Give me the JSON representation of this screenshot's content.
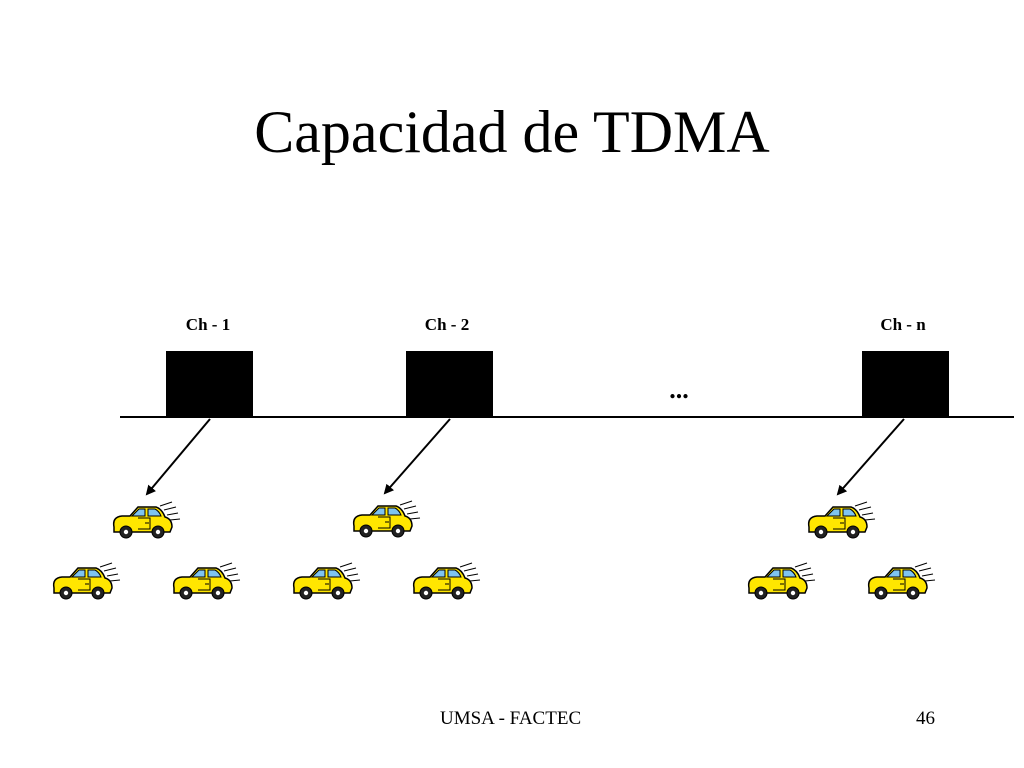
{
  "slide": {
    "title": "Capacidad de TDMA",
    "footer_text": "UMSA - FACTEC",
    "page_number": "46"
  },
  "diagram": {
    "channels": [
      {
        "label": "Ch - 1"
      },
      {
        "label": "Ch - 2"
      },
      {
        "label": "Ch - n"
      }
    ],
    "ellipsis": "...",
    "icons": [
      "car-icon"
    ]
  }
}
